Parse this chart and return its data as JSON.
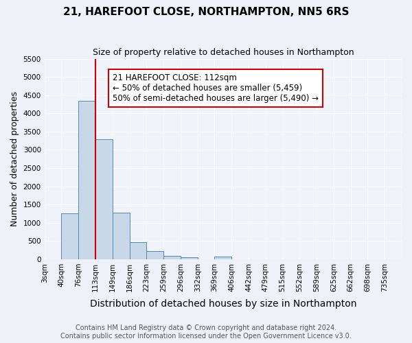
{
  "title": "21, HAREFOOT CLOSE, NORTHAMPTON, NN5 6RS",
  "subtitle": "Size of property relative to detached houses in Northampton",
  "xlabel": "Distribution of detached houses by size in Northampton",
  "ylabel": "Number of detached properties",
  "footer_line1": "Contains HM Land Registry data © Crown copyright and database right 2024.",
  "footer_line2": "Contains public sector information licensed under the Open Government Licence v3.0.",
  "bin_labels": [
    "3sqm",
    "40sqm",
    "76sqm",
    "113sqm",
    "149sqm",
    "186sqm",
    "223sqm",
    "259sqm",
    "296sqm",
    "332sqm",
    "369sqm",
    "406sqm",
    "442sqm",
    "479sqm",
    "515sqm",
    "552sqm",
    "589sqm",
    "625sqm",
    "662sqm",
    "698sqm",
    "735sqm"
  ],
  "bar_values": [
    0,
    1250,
    4350,
    3290,
    1270,
    475,
    215,
    95,
    50,
    0,
    75,
    0,
    0,
    0,
    0,
    0,
    0,
    0,
    0,
    0,
    0
  ],
  "ylim": [
    0,
    5500
  ],
  "yticks": [
    0,
    500,
    1000,
    1500,
    2000,
    2500,
    3000,
    3500,
    4000,
    4500,
    5000,
    5500
  ],
  "bar_color": "#c8d8e8",
  "bar_edge_color": "#5588aa",
  "vline_pos": 3.0,
  "vline_color": "#cc0000",
  "annotation_text": "21 HAREFOOT CLOSE: 112sqm\n← 50% of detached houses are smaller (5,459)\n50% of semi-detached houses are larger (5,490) →",
  "annotation_box_color": "#ffffff",
  "annotation_box_edge": "#cc0000",
  "bg_color": "#eef2f8",
  "plot_bg_color": "#f0f4fa",
  "grid_color": "#ffffff",
  "title_fontsize": 11,
  "subtitle_fontsize": 9,
  "xlabel_fontsize": 10,
  "ylabel_fontsize": 9,
  "tick_fontsize": 7.5,
  "footer_fontsize": 7,
  "annotation_fontsize": 8.5
}
